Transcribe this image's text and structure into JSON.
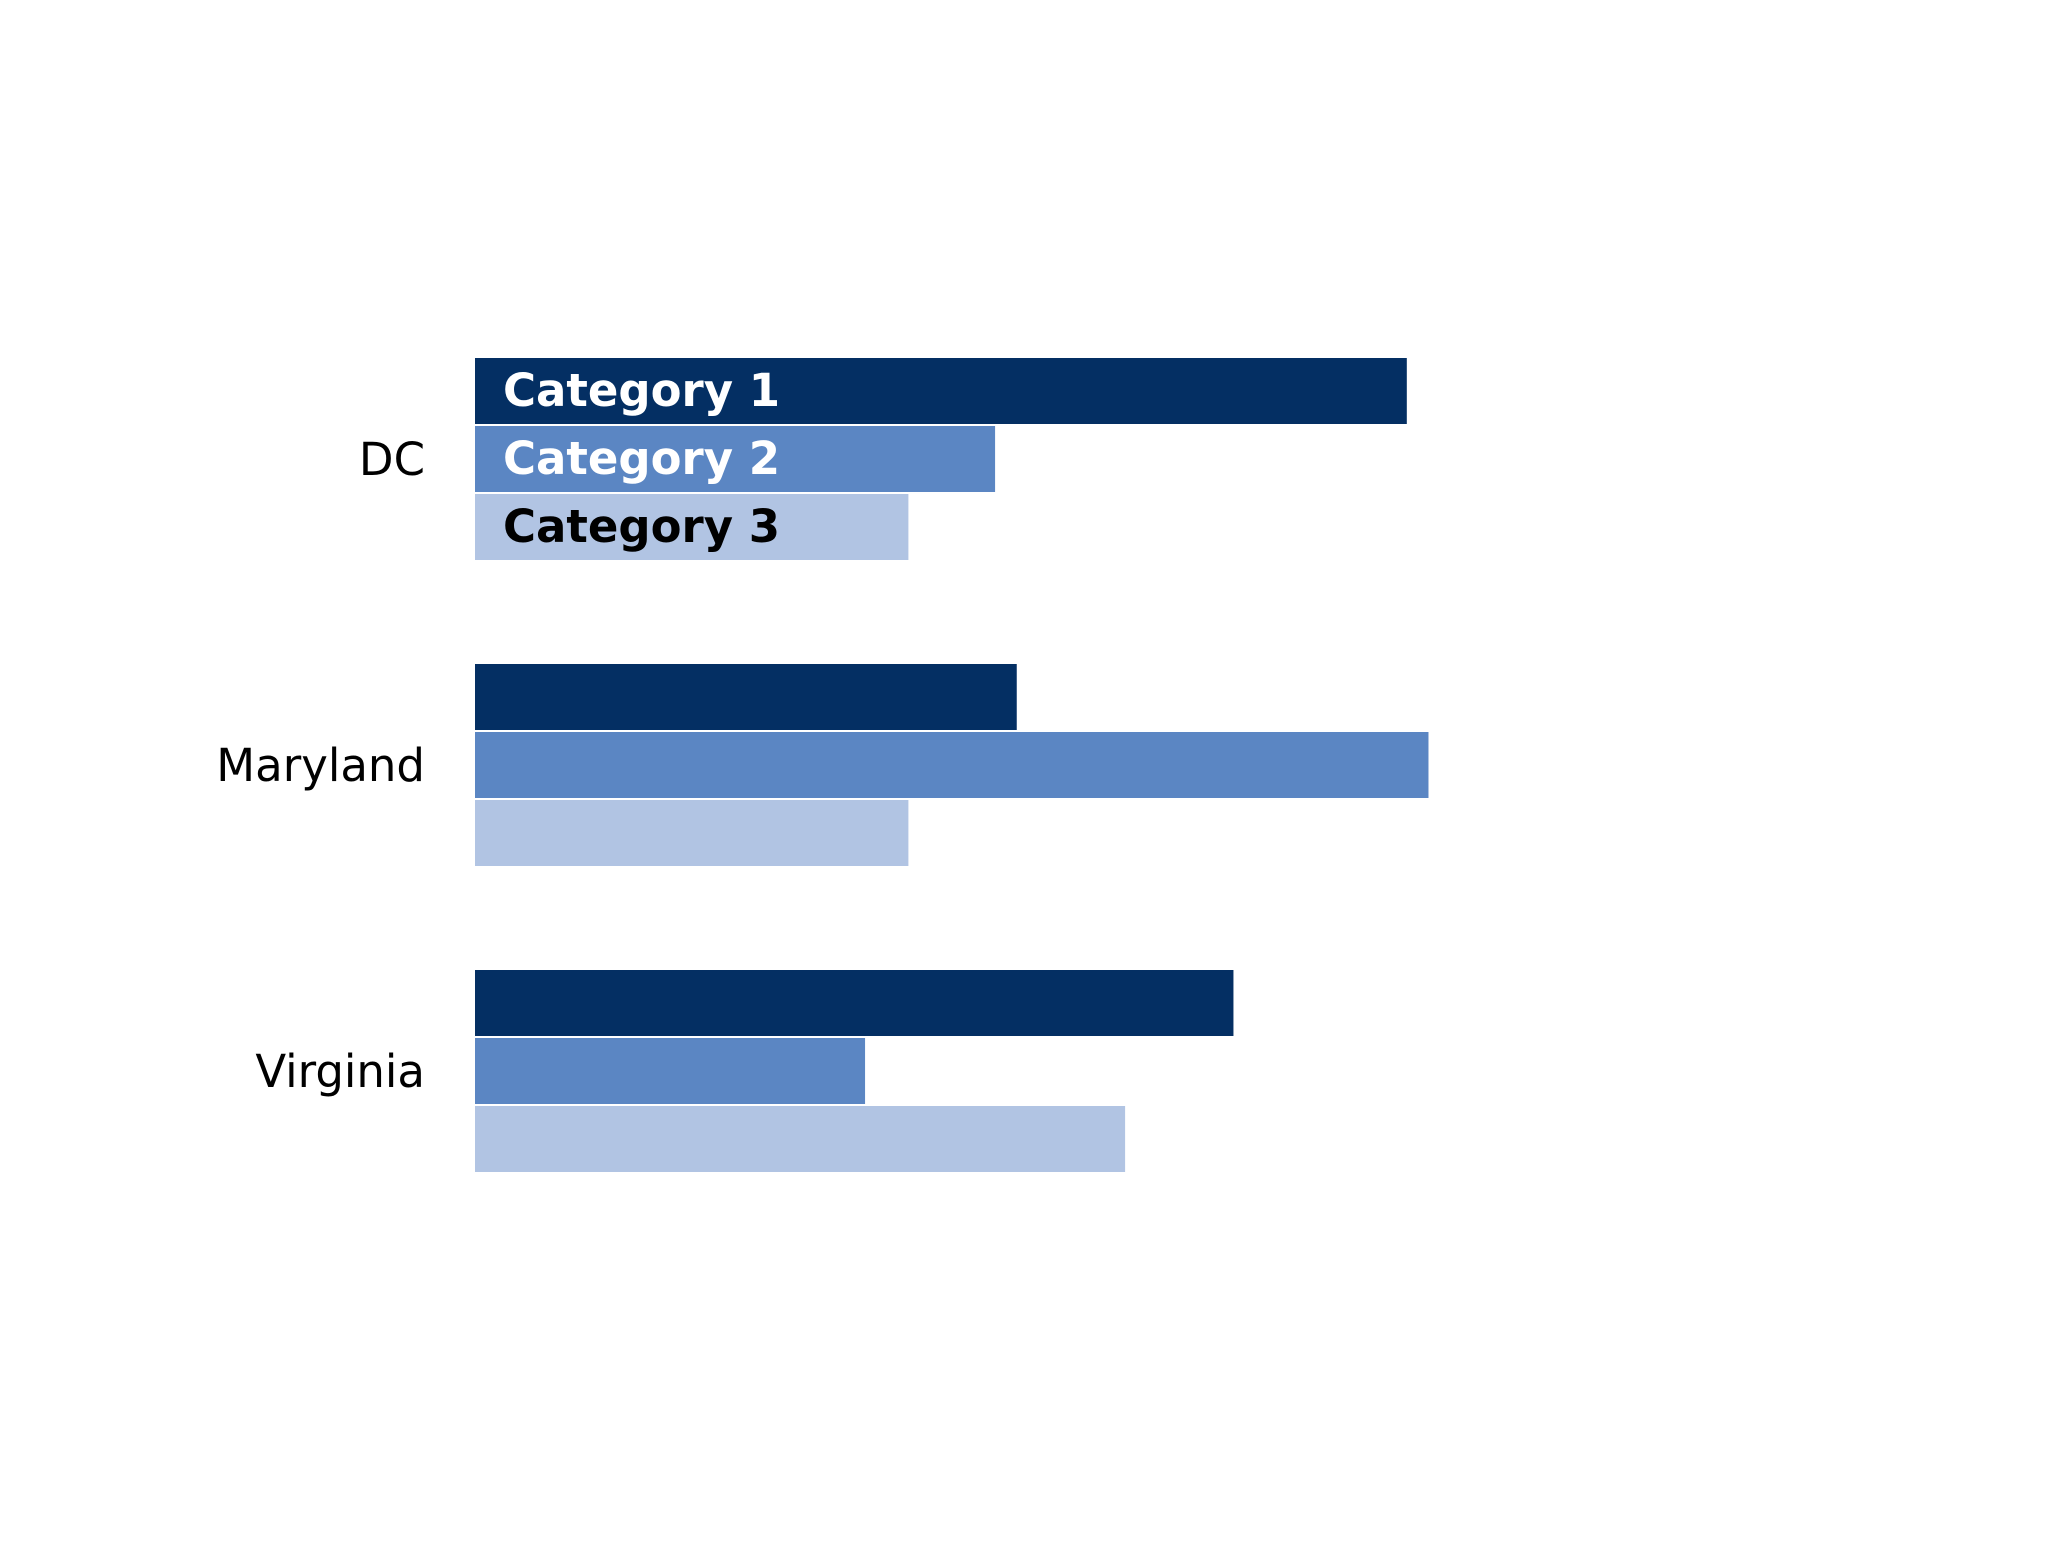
{
  "chart_data": {
    "type": "bar",
    "orientation": "horizontal",
    "title": "",
    "xlabel": "",
    "ylabel": "",
    "categories": [
      "DC",
      "Maryland",
      "Virginia"
    ],
    "series": [
      {
        "name": "Category 1",
        "values": [
          4.3,
          2.5,
          3.5
        ],
        "color": "#042f63",
        "label_color": "#ffffff"
      },
      {
        "name": "Category 2",
        "values": [
          2.4,
          4.4,
          1.8
        ],
        "color": "#5b86c3",
        "label_color": "#ffffff"
      },
      {
        "name": "Category 3",
        "values": [
          2.0,
          2.0,
          3.0
        ],
        "color": "#b1c4e3",
        "label_color": "#000000"
      }
    ],
    "xlim": [
      0,
      5
    ],
    "grid": false,
    "axes_visible": false,
    "legend": "inside first category bars"
  }
}
